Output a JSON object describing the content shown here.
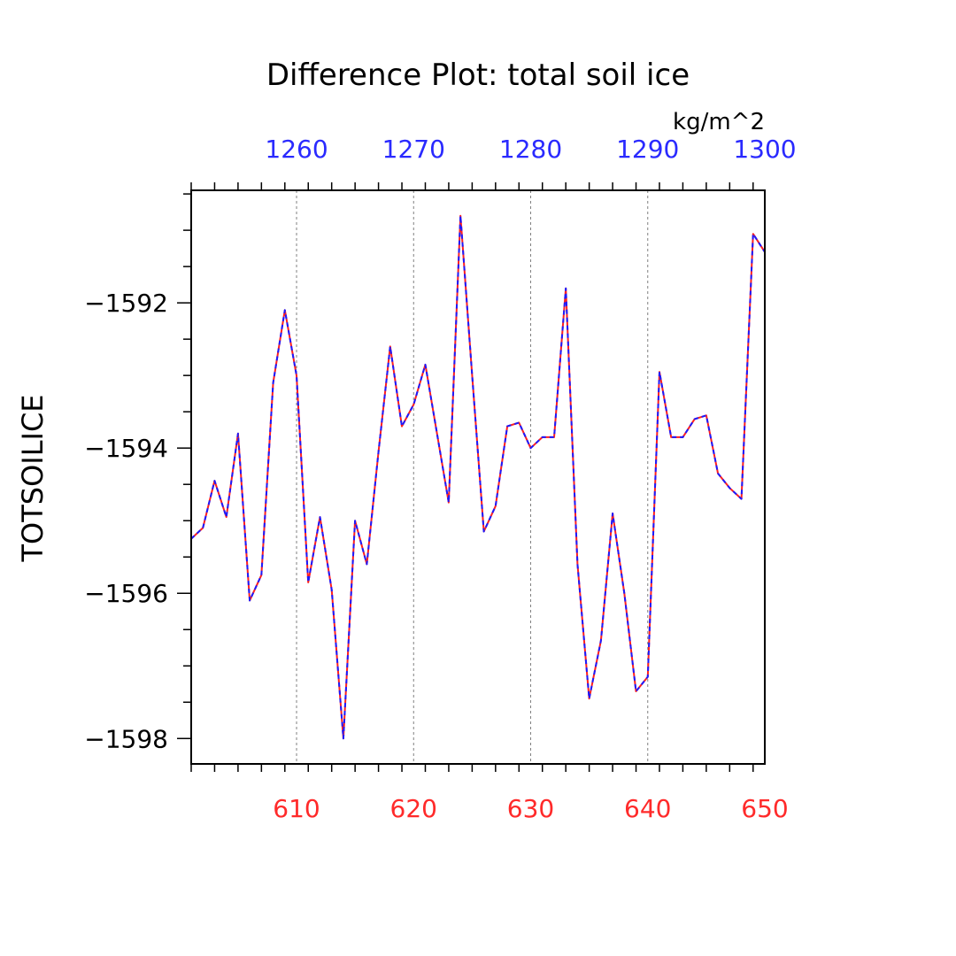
{
  "chart_data": {
    "type": "line",
    "title": "Difference Plot: total soil ice",
    "units": "kg/m^2",
    "ylabel": "TOTSOILICE",
    "colors": {
      "bottom_axis": "#ff2a2a",
      "top_axis": "#2a2aff",
      "line_red": "#ff2020",
      "line_blue": "#1a1aff",
      "grid": "#808080"
    },
    "xlim": [
      601,
      650
    ],
    "top_xlim": [
      1251,
      1300
    ],
    "ylim": [
      -1598.35,
      -1590.45
    ],
    "x_ticks": [
      "610",
      "620",
      "630",
      "640",
      "650"
    ],
    "top_ticks": [
      "1260",
      "1270",
      "1280",
      "1290",
      "1300"
    ],
    "y_ticks": [
      "-1592",
      "-1594",
      "-1596",
      "-1598"
    ],
    "series": [
      {
        "name": "difference",
        "x": [
          601,
          602,
          603,
          604,
          605,
          606,
          607,
          608,
          609,
          610,
          611,
          612,
          613,
          614,
          615,
          616,
          617,
          618,
          619,
          620,
          621,
          622,
          623,
          624,
          625,
          626,
          627,
          628,
          629,
          630,
          631,
          632,
          633,
          634,
          635,
          636,
          637,
          638,
          639,
          640,
          641,
          642,
          643,
          644,
          645,
          646,
          647,
          648,
          649,
          650
        ],
        "values": [
          -1595.25,
          -1595.1,
          -1594.45,
          -1594.95,
          -1593.8,
          -1596.1,
          -1595.75,
          -1593.1,
          -1592.1,
          -1593.0,
          -1595.85,
          -1594.95,
          -1595.95,
          -1598.0,
          -1595.0,
          -1595.6,
          -1594.05,
          -1592.6,
          -1593.7,
          -1593.4,
          -1592.85,
          -1593.8,
          -1594.75,
          -1590.8,
          -1593.0,
          -1595.15,
          -1594.8,
          -1593.7,
          -1593.65,
          -1594.0,
          -1593.85,
          -1593.85,
          -1591.8,
          -1595.6,
          -1597.45,
          -1596.65,
          -1594.9,
          -1596.0,
          -1597.35,
          -1597.15,
          -1592.95,
          -1593.85,
          -1593.85,
          -1593.6,
          -1593.55,
          -1594.35,
          -1594.55,
          -1594.7,
          -1591.05,
          -1591.3
        ]
      }
    ]
  }
}
